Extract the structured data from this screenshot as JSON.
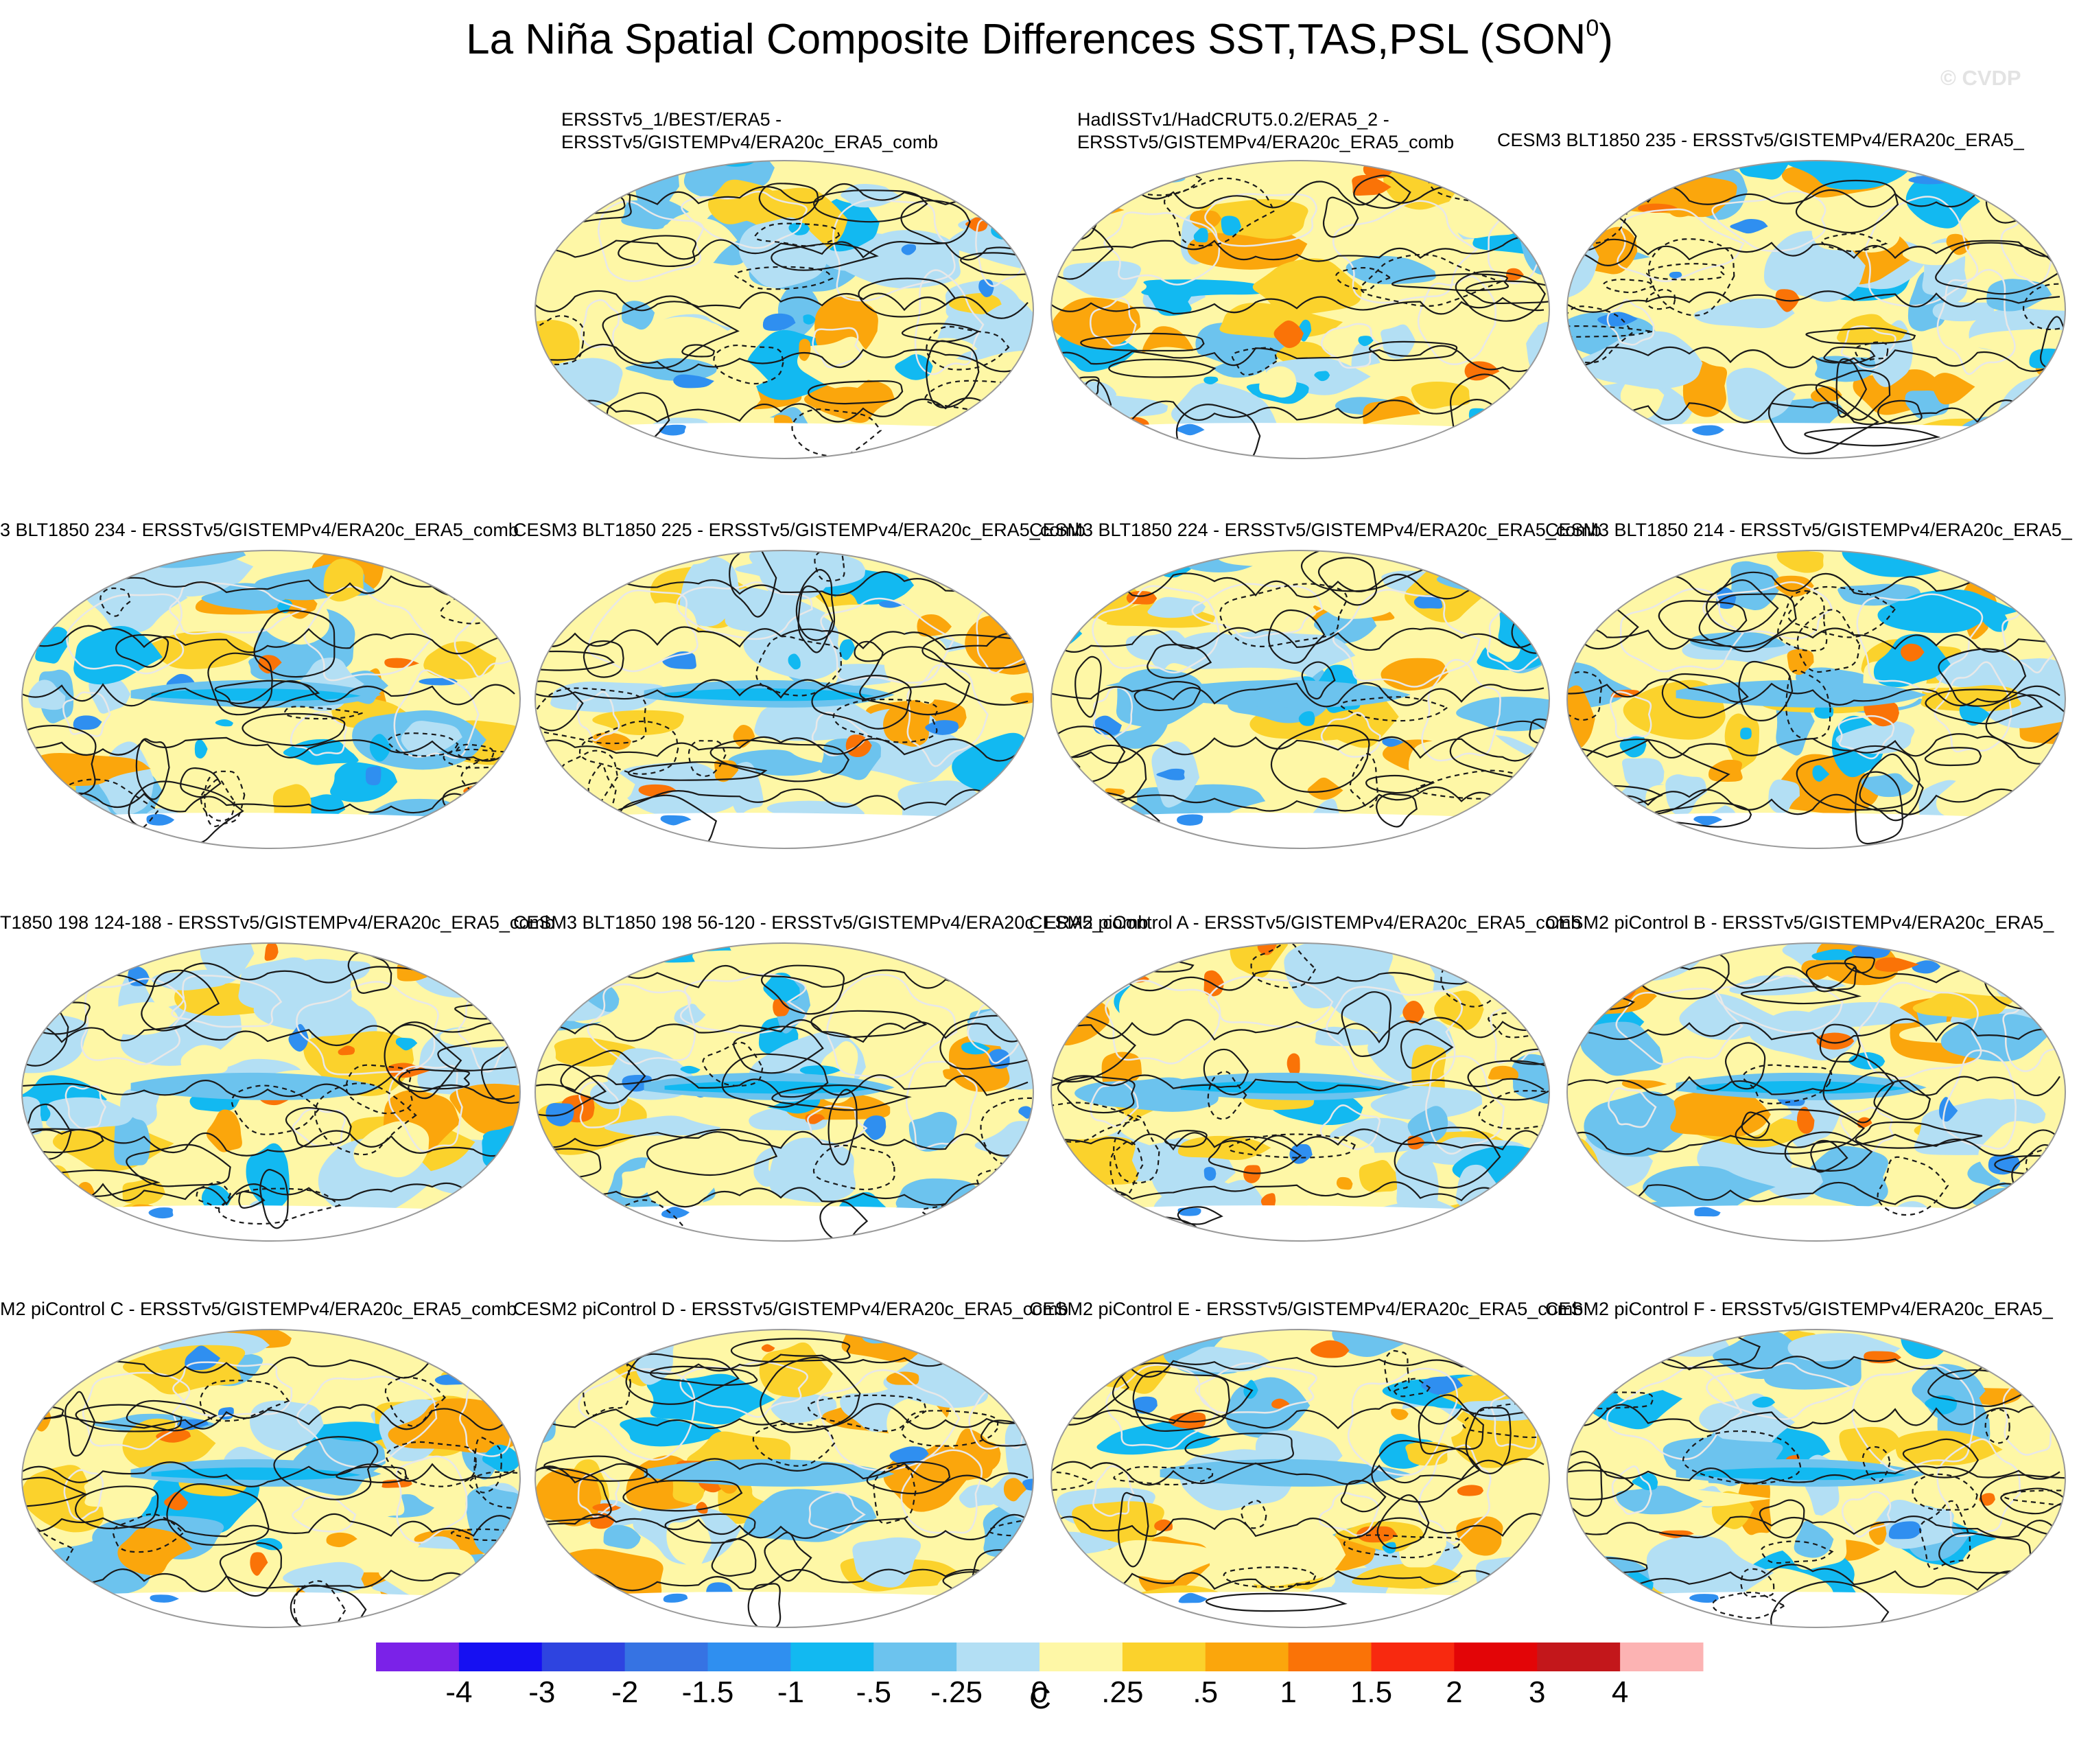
{
  "title": {
    "main": "La Niña Spatial Composite Differences SST,TAS,PSL (SON",
    "superscript": "0",
    "suffix": ")"
  },
  "watermark": "© CVDP",
  "panels": [
    {
      "title_lines": [
        "ERSSTv5_1/BEST/ERA5 -",
        "ERSSTv5/GISTEMPv4/ERA20c_ERA5_comb"
      ],
      "pattern": "obs-1"
    },
    {
      "title_lines": [
        "HadISSTv1/HadCRUT5.0.2/ERA5_2 -",
        "ERSSTv5/GISTEMPv4/ERA20c_ERA5_comb"
      ],
      "pattern": "obs-2"
    },
    {
      "title_lines": [
        "CESM3 BLT1850 235 - ERSSTv5/GISTEMPv4/ERA20c_ERA5_"
      ],
      "pattern": "model-weak"
    },
    {
      "title_lines": [
        "3 BLT1850 234 - ERSSTv5/GISTEMPv4/ERA20c_ERA5_comb"
      ],
      "pattern": "model-strong"
    },
    {
      "title_lines": [
        "CESM3 BLT1850 225 - ERSSTv5/GISTEMPv4/ERA20c_ERA5_comb"
      ],
      "pattern": "model-strong"
    },
    {
      "title_lines": [
        "CESM3 BLT1850 224 - ERSSTv5/GISTEMPv4/ERA20c_ERA5_comb"
      ],
      "pattern": "model-moderate"
    },
    {
      "title_lines": [
        "CESM3 BLT1850 214 - ERSSTv5/GISTEMPv4/ERA20c_ERA5_"
      ],
      "pattern": "model-moderate"
    },
    {
      "title_lines": [
        "T1850 198 124-188 - ERSSTv5/GISTEMPv4/ERA20c_ERA5_comb"
      ],
      "pattern": "model-moderate"
    },
    {
      "title_lines": [
        "CESM3 BLT1850 198 56-120 - ERSSTv5/GISTEMPv4/ERA20c_ERA5_comb"
      ],
      "pattern": "model-strong"
    },
    {
      "title_lines": [
        "CESM2 piControl A - ERSSTv5/GISTEMPv4/ERA20c_ERA5_comb"
      ],
      "pattern": "model-strong"
    },
    {
      "title_lines": [
        "CESM2 piControl B - ERSSTv5/GISTEMPv4/ERA20c_ERA5_"
      ],
      "pattern": "model-strong"
    },
    {
      "title_lines": [
        "M2 piControl C - ERSSTv5/GISTEMPv4/ERA20c_ERA5_comb"
      ],
      "pattern": "model-strong"
    },
    {
      "title_lines": [
        "CESM2 piControl D - ERSSTv5/GISTEMPv4/ERA20c_ERA5_comb"
      ],
      "pattern": "model-moderate"
    },
    {
      "title_lines": [
        "CESM2 piControl E - ERSSTv5/GISTEMPv4/ERA20c_ERA5_comb"
      ],
      "pattern": "model-moderate"
    },
    {
      "title_lines": [
        "CESM2 piControl F - ERSSTv5/GISTEMPv4/ERA20c_ERA5_"
      ],
      "pattern": "model-strong"
    }
  ],
  "colorbar": {
    "unit": "C",
    "tick_labels": [
      "-4",
      "-3",
      "-2",
      "-1.5",
      "-1",
      "-.5",
      "-.25",
      "0",
      ".25",
      ".5",
      "1",
      "1.5",
      "2",
      "3",
      "4"
    ],
    "colors": [
      "#7b22e8",
      "#1610f2",
      "#2e44e0",
      "#3673e3",
      "#2f8ff0",
      "#12b9f1",
      "#6cc3ee",
      "#b3dff4",
      "#fef7a6",
      "#fbd22c",
      "#fba60c",
      "#fa7307",
      "#f8290f",
      "#e30507",
      "#c3171b",
      "#fcb3b3"
    ]
  },
  "map_colors": {
    "land_outline": "#e8e8e8",
    "contour": "#1a1a1a",
    "frame": "#999999",
    "antarctica": "#ffffff"
  }
}
